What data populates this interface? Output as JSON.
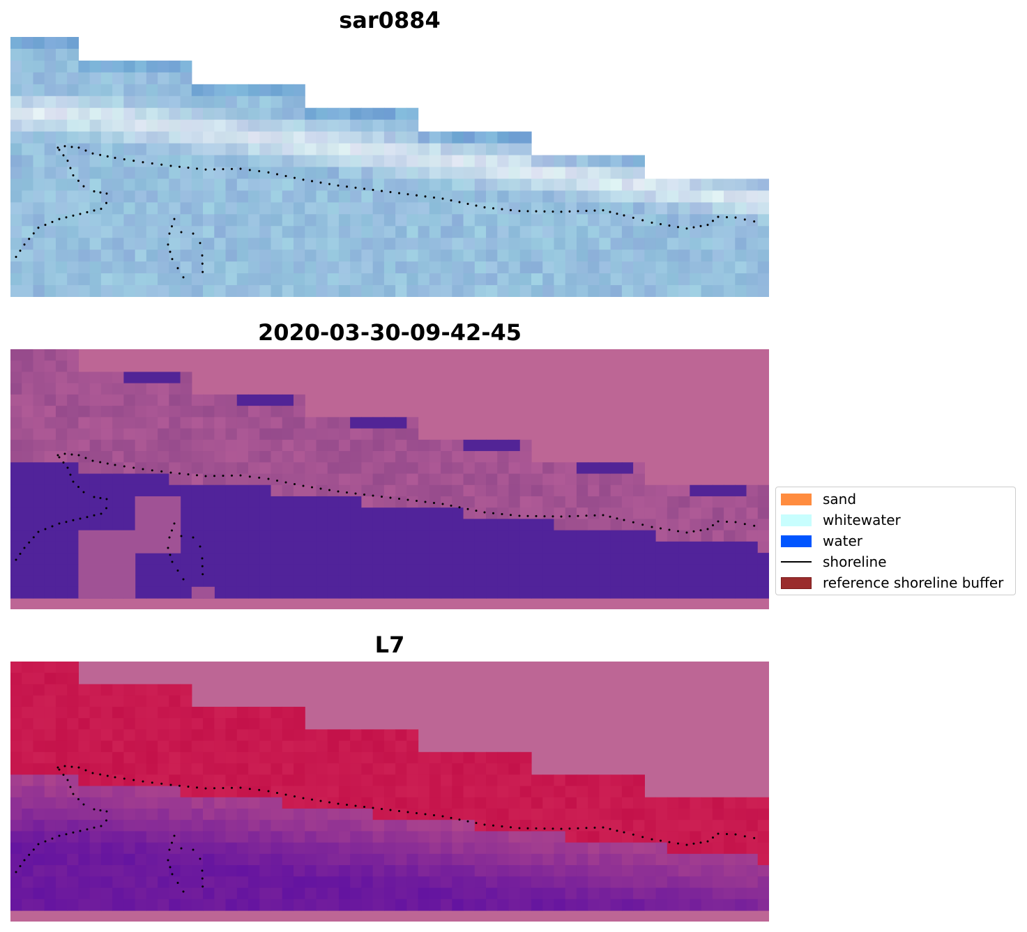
{
  "panels": [
    {
      "title": "sar0884",
      "style": "rgb"
    },
    {
      "title": "2020-03-30-09-42-45",
      "style": "classified"
    },
    {
      "title": "L7",
      "style": "index"
    }
  ],
  "legend": {
    "items": [
      {
        "label": "sand",
        "kind": "patch",
        "color": "#ff8c3f"
      },
      {
        "label": "whitewater",
        "kind": "patch",
        "color": "#c8fefe"
      },
      {
        "label": "water",
        "kind": "patch",
        "color": "#0055ff"
      },
      {
        "label": "shoreline",
        "kind": "line",
        "color": "#000000"
      },
      {
        "label": "reference shoreline buffer",
        "kind": "patch",
        "color": "#9a2d2d",
        "edge": "#7a1a1a"
      }
    ]
  },
  "colors": {
    "nodata_pink": "#bd6695",
    "water_purple": "#51239a",
    "red_index": "#c4124a",
    "sky_blue": "#9ec2de"
  }
}
